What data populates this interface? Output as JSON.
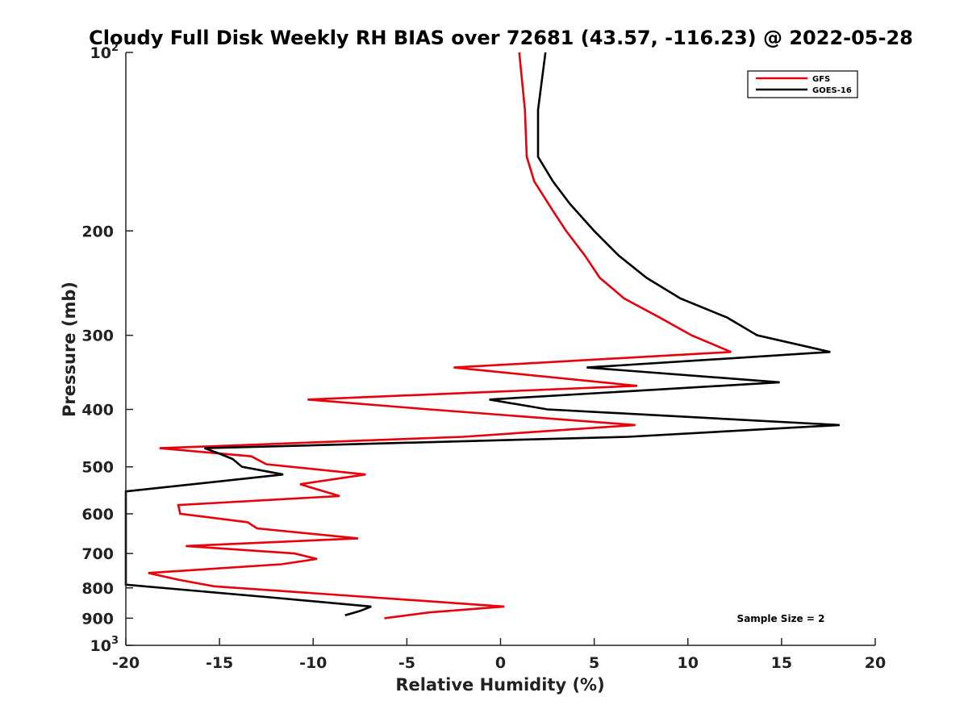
{
  "chart_data": {
    "type": "line",
    "title": "Cloudy Full Disk Weekly RH BIAS over 72681 (43.57, -116.23) @ 2022-05-28",
    "xlabel": "Relative Humidity (%)",
    "ylabel": "Pressure (mb)",
    "xlim": [
      -20,
      20
    ],
    "ylim": [
      1000,
      100
    ],
    "yscale": "log",
    "grid": false,
    "legend_position": "top-right",
    "x_ticks": [
      "-20",
      "-15",
      "-10",
      "-5",
      "0",
      "5",
      "10",
      "15",
      "20"
    ],
    "y_ticks": [
      {
        "value": 100,
        "label": "10",
        "exp": "2"
      },
      {
        "value": 200,
        "label": "200"
      },
      {
        "value": 300,
        "label": "300"
      },
      {
        "value": 400,
        "label": "400"
      },
      {
        "value": 500,
        "label": "500"
      },
      {
        "value": 600,
        "label": "600"
      },
      {
        "value": 700,
        "label": "700"
      },
      {
        "value": 800,
        "label": "800"
      },
      {
        "value": 900,
        "label": "900"
      },
      {
        "value": 1000,
        "label": "10",
        "exp": "3"
      }
    ],
    "series": [
      {
        "name": "GFS",
        "color": "#e8000b",
        "points": [
          [
            1.0,
            100
          ],
          [
            1.3,
            125
          ],
          [
            1.4,
            150
          ],
          [
            1.8,
            165
          ],
          [
            2.8,
            185
          ],
          [
            3.5,
            200
          ],
          [
            4.5,
            220
          ],
          [
            5.3,
            240
          ],
          [
            6.6,
            260
          ],
          [
            8.5,
            280
          ],
          [
            10.2,
            300
          ],
          [
            12.3,
            320
          ],
          [
            -2.5,
            340
          ],
          [
            7.3,
            365
          ],
          [
            -10.3,
            385
          ],
          [
            -3.8,
            400
          ],
          [
            7.2,
            425
          ],
          [
            -2.0,
            445
          ],
          [
            -18.2,
            465
          ],
          [
            -13.3,
            480
          ],
          [
            -12.5,
            495
          ],
          [
            -7.2,
            515
          ],
          [
            -10.7,
            535
          ],
          [
            -8.6,
            560
          ],
          [
            -17.2,
            580
          ],
          [
            -17.1,
            600
          ],
          [
            -13.5,
            620
          ],
          [
            -13.0,
            635
          ],
          [
            -7.6,
            660
          ],
          [
            -16.8,
            680
          ],
          [
            -11.0,
            700
          ],
          [
            -9.8,
            715
          ],
          [
            -11.7,
            730
          ],
          [
            -18.8,
            755
          ],
          [
            -17.2,
            775
          ],
          [
            -15.3,
            795
          ],
          [
            0.2,
            860
          ],
          [
            -3.8,
            880
          ],
          [
            -6.2,
            900
          ]
        ]
      },
      {
        "name": "GOES-16",
        "color": "#000000",
        "points": [
          [
            2.4,
            100
          ],
          [
            2.0,
            125
          ],
          [
            2.0,
            150
          ],
          [
            2.8,
            165
          ],
          [
            3.7,
            180
          ],
          [
            5.0,
            200
          ],
          [
            6.3,
            220
          ],
          [
            7.8,
            240
          ],
          [
            9.6,
            260
          ],
          [
            12.1,
            280
          ],
          [
            13.7,
            300
          ],
          [
            17.6,
            320
          ],
          [
            4.6,
            340
          ],
          [
            14.9,
            360
          ],
          [
            -0.6,
            385
          ],
          [
            2.5,
            400
          ],
          [
            18.1,
            425
          ],
          [
            6.8,
            445
          ],
          [
            -15.8,
            465
          ],
          [
            -15.0,
            475
          ],
          [
            -14.3,
            485
          ],
          [
            -13.8,
            500
          ],
          [
            -11.6,
            515
          ],
          [
            -20.0,
            550
          ],
          [
            -20.0,
            790
          ],
          [
            -12.3,
            830
          ],
          [
            -6.9,
            860
          ],
          [
            -7.5,
            875
          ],
          [
            -8.3,
            890
          ]
        ]
      }
    ],
    "annotations": [
      "Sample Size = 2"
    ]
  }
}
